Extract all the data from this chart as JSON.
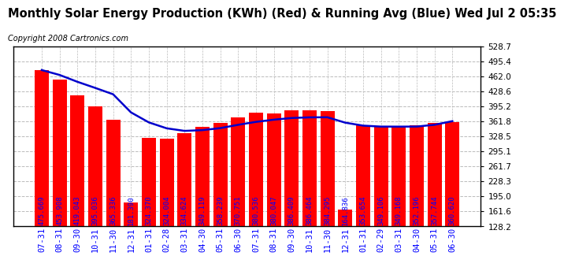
{
  "title": "Monthly Solar Energy Production (KWh) (Red) & Running Avg (Blue) Wed Jul 2 05:35",
  "copyright": "Copyright 2008 Cartronics.com",
  "categories": [
    "07-31",
    "08-31",
    "09-30",
    "10-31",
    "11-30",
    "12-31",
    "01-31",
    "02-28",
    "03-31",
    "04-30",
    "05-31",
    "06-30",
    "07-31",
    "08-31",
    "09-30",
    "10-31",
    "11-30",
    "12-31",
    "01-31",
    "02-29",
    "03-31",
    "04-30",
    "05-31",
    "06-30"
  ],
  "bar_values": [
    475.669,
    453.908,
    419.043,
    395.036,
    365.336,
    181.39,
    324.37,
    324.004,
    334.624,
    349.119,
    358.239,
    370.751,
    380.536,
    380.047,
    386.409,
    386.464,
    384.295,
    164.836,
    353.654,
    349.106,
    349.168,
    352.196,
    357.744,
    360.62
  ],
  "running_avg": [
    475.669,
    464.789,
    449.539,
    435.914,
    421.81,
    381.557,
    359.331,
    346.172,
    340.489,
    342.134,
    346.623,
    353.949,
    360.519,
    365.325,
    369.138,
    370.547,
    370.764,
    358.741,
    352.163,
    350.026,
    349.929,
    350.078,
    354.007,
    362.134
  ],
  "bar_color": "#FF0000",
  "line_color": "#0000CC",
  "bg_color": "#FFFFFF",
  "grid_color": "#BBBBBB",
  "title_color": "#000000",
  "copyright_color": "#000000",
  "label_color": "#0000FF",
  "xtick_color": "#0000FF",
  "ytick_color": "#000000",
  "yticks": [
    128.2,
    161.6,
    195.0,
    228.3,
    261.7,
    295.1,
    328.5,
    361.8,
    395.2,
    428.6,
    462.0,
    495.4,
    528.7
  ],
  "ymin": 128.2,
  "ymax": 528.7,
  "title_fontsize": 10.5,
  "copyright_fontsize": 7,
  "label_fontsize": 6.5,
  "xtick_fontsize": 7.5,
  "ytick_fontsize": 7.5
}
